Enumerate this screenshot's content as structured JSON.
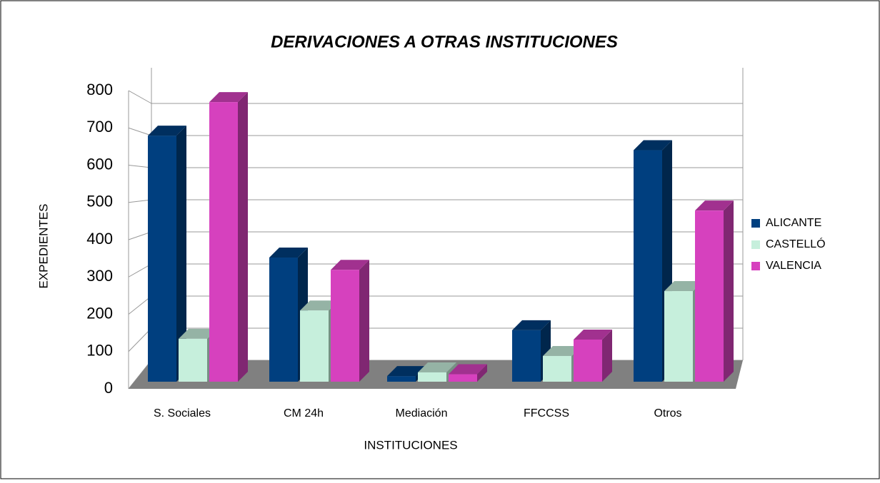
{
  "chart_data": {
    "type": "bar3d",
    "title": "DERIVACIONES A OTRAS INSTITUCIONES",
    "x_label": "INSTITUCIONES",
    "y_label": "EXPEDIENTES",
    "categories": [
      "S. Sociales",
      "CM 24h",
      "Mediación",
      "FFCCSS",
      "Otros"
    ],
    "series": [
      {
        "name": "ALICANTE",
        "color": "#003f7f",
        "values": [
          660,
          333,
          15,
          138,
          621
        ]
      },
      {
        "name": "CASTELLÓ",
        "color": "#c6efdc",
        "values": [
          115,
          191,
          25,
          69,
          243
        ]
      },
      {
        "name": "VALENCIA",
        "color": "#d641be",
        "values": [
          750,
          300,
          20,
          113,
          459
        ]
      }
    ],
    "ylim": [
      0,
      800
    ],
    "yticks": [
      0,
      100,
      200,
      300,
      400,
      500,
      600,
      700,
      800
    ],
    "grid": true,
    "legend": "right"
  }
}
